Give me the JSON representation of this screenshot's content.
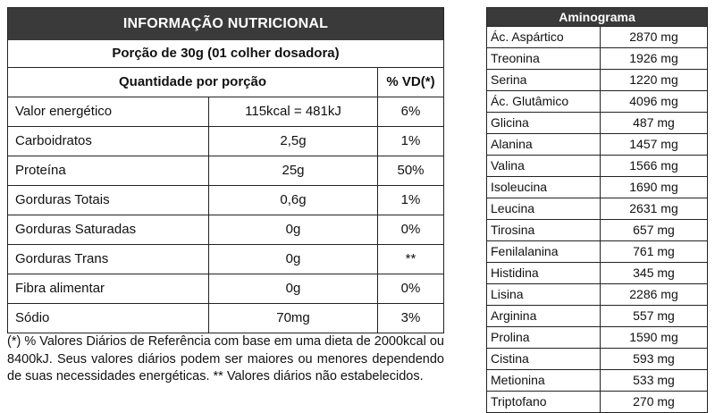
{
  "nutrition": {
    "title": "INFORMAÇÃO NUTRICIONAL",
    "portion": "Porção de 30g (01 colher dosadora)",
    "header_quantity": "Quantidade por porção",
    "header_vd": "% VD(*)",
    "rows": [
      {
        "name": "Valor energético",
        "amount": "115kcal = 481kJ",
        "vd": "6%"
      },
      {
        "name": "Carboidratos",
        "amount": "2,5g",
        "vd": "1%"
      },
      {
        "name": "Proteína",
        "amount": "25g",
        "vd": "50%"
      },
      {
        "name": "Gorduras Totais",
        "amount": "0,6g",
        "vd": "1%"
      },
      {
        "name": "Gorduras Saturadas",
        "amount": "0g",
        "vd": "0%"
      },
      {
        "name": "Gorduras Trans",
        "amount": "0g",
        "vd": "**"
      },
      {
        "name": "Fibra alimentar",
        "amount": "0g",
        "vd": "0%"
      },
      {
        "name": "Sódio",
        "amount": "70mg",
        "vd": "3%"
      }
    ],
    "footnote": "(*) % Valores Diários de Referência com base em uma dieta de 2000kcal ou 8400kJ. Seus valores diários podem ser maiores ou menores dependendo de suas necessidades energéticas. ** Valores diários não estabelecidos."
  },
  "aminogram": {
    "title": "Aminograma",
    "rows": [
      {
        "name": "Ác. Aspártico",
        "value": "2870 mg"
      },
      {
        "name": "Treonina",
        "value": "1926 mg"
      },
      {
        "name": "Serina",
        "value": "1220 mg"
      },
      {
        "name": "Ác. Glutâmico",
        "value": "4096 mg"
      },
      {
        "name": "Glicina",
        "value": "487 mg"
      },
      {
        "name": "Alanina",
        "value": "1457 mg"
      },
      {
        "name": "Valina",
        "value": "1566 mg"
      },
      {
        "name": "Isoleucina",
        "value": "1690 mg"
      },
      {
        "name": "Leucina",
        "value": "2631 mg"
      },
      {
        "name": "Tirosina",
        "value": "657 mg"
      },
      {
        "name": "Fenilalanina",
        "value": "761 mg"
      },
      {
        "name": "Histidina",
        "value": "345 mg"
      },
      {
        "name": "Lisina",
        "value": "2286 mg"
      },
      {
        "name": "Arginina",
        "value": "557 mg"
      },
      {
        "name": "Prolina",
        "value": "1590 mg"
      },
      {
        "name": "Cistina",
        "value": "593 mg"
      },
      {
        "name": "Metionina",
        "value": "533 mg"
      },
      {
        "name": "Triptofano",
        "value": "270 mg"
      }
    ]
  }
}
